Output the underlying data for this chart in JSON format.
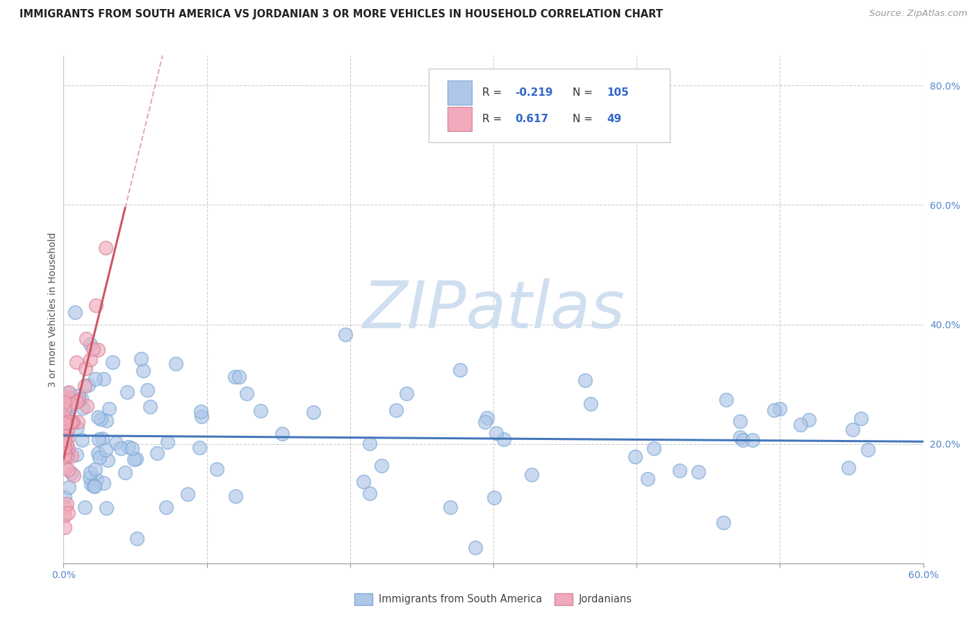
{
  "title": "IMMIGRANTS FROM SOUTH AMERICA VS JORDANIAN 3 OR MORE VEHICLES IN HOUSEHOLD CORRELATION CHART",
  "source": "Source: ZipAtlas.com",
  "ylabel": "3 or more Vehicles in Household",
  "xlim": [
    0.0,
    0.6
  ],
  "ylim": [
    0.0,
    0.85
  ],
  "blue_R": "-0.219",
  "blue_N": "105",
  "pink_R": "0.617",
  "pink_N": "49",
  "blue_color": "#aec6e8",
  "pink_color": "#f0aabb",
  "blue_edge_color": "#7aa8d4",
  "pink_edge_color": "#d4829a",
  "blue_line_color": "#4477bb",
  "pink_line_color": "#cc5566",
  "watermark_color": "#d0dff0",
  "legend1": "Immigrants from South America",
  "legend2": "Jordanians",
  "background_color": "#ffffff",
  "grid_color": "#cccccc",
  "title_color": "#222222",
  "source_color": "#999999",
  "tick_color": "#5588cc",
  "ylabel_color": "#555555"
}
